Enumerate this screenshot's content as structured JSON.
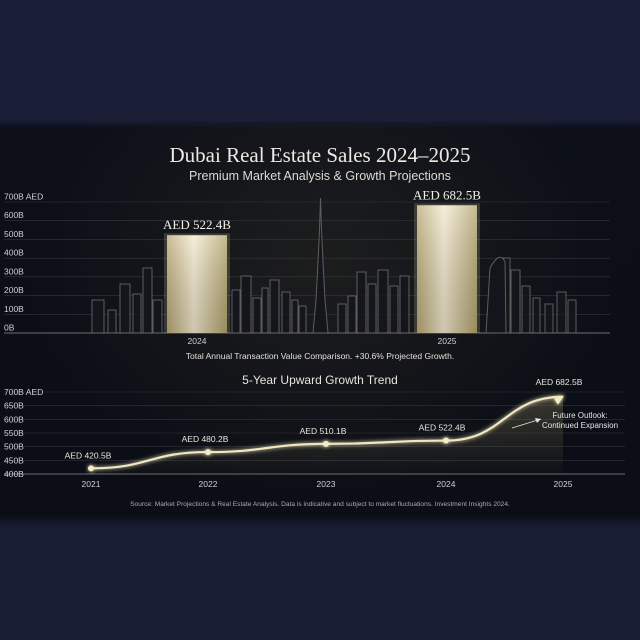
{
  "title": "Dubai Real Estate Sales 2024–2025",
  "subtitle": "Premium Market Analysis & Growth Projections",
  "source_note": "Source: Market Projections & Real Estate Analysis. Data is indicative and subject to market fluctuations. Investment Insights 2024.",
  "colors": {
    "background": "#181d34",
    "panel": "#0c0f18",
    "gold": "#d9cc9a",
    "gold_light": "#f4ecc6",
    "text": "#e6e4dc",
    "axis_text": "#cfcfd6",
    "grid": "#3b3e46"
  },
  "chart_data": [
    {
      "type": "bar",
      "title": "",
      "categories": [
        "2024",
        "2025"
      ],
      "values": [
        522.4,
        682.5
      ],
      "data_labels": [
        "AED 522.4B",
        "AED 682.5B"
      ],
      "ylabel": "",
      "yticks": [
        0,
        100,
        200,
        300,
        400,
        500,
        600,
        700
      ],
      "ytick_labels": [
        "0B",
        "100B",
        "200B",
        "300B",
        "400B",
        "500B",
        "600B",
        "700B AED"
      ],
      "ylim": [
        0,
        700
      ],
      "grid": true,
      "caption": "Total Annual Transaction Value Comparison. +30.6% Projected Growth.",
      "background_art": "dubai-skyline-silhouette"
    },
    {
      "type": "line",
      "title": "5-Year Upward Growth Trend",
      "x": [
        "2021",
        "2022",
        "2023",
        "2024",
        "2025"
      ],
      "values": [
        420.5,
        480.2,
        510.1,
        522.4,
        682.5
      ],
      "data_labels": [
        "AED 420.5B",
        "AED 480.2B",
        "AED 510.1B",
        "AED 522.4B",
        "AED 682.5B"
      ],
      "yticks": [
        400,
        450,
        500,
        550,
        600,
        650,
        700
      ],
      "ytick_labels": [
        "400B",
        "450B",
        "500B",
        "550B",
        "600B",
        "650B",
        "700B AED"
      ],
      "ylim": [
        400,
        700
      ],
      "grid": true,
      "annotation": [
        "Future Outlook:",
        "Continued Expansion"
      ]
    }
  ]
}
